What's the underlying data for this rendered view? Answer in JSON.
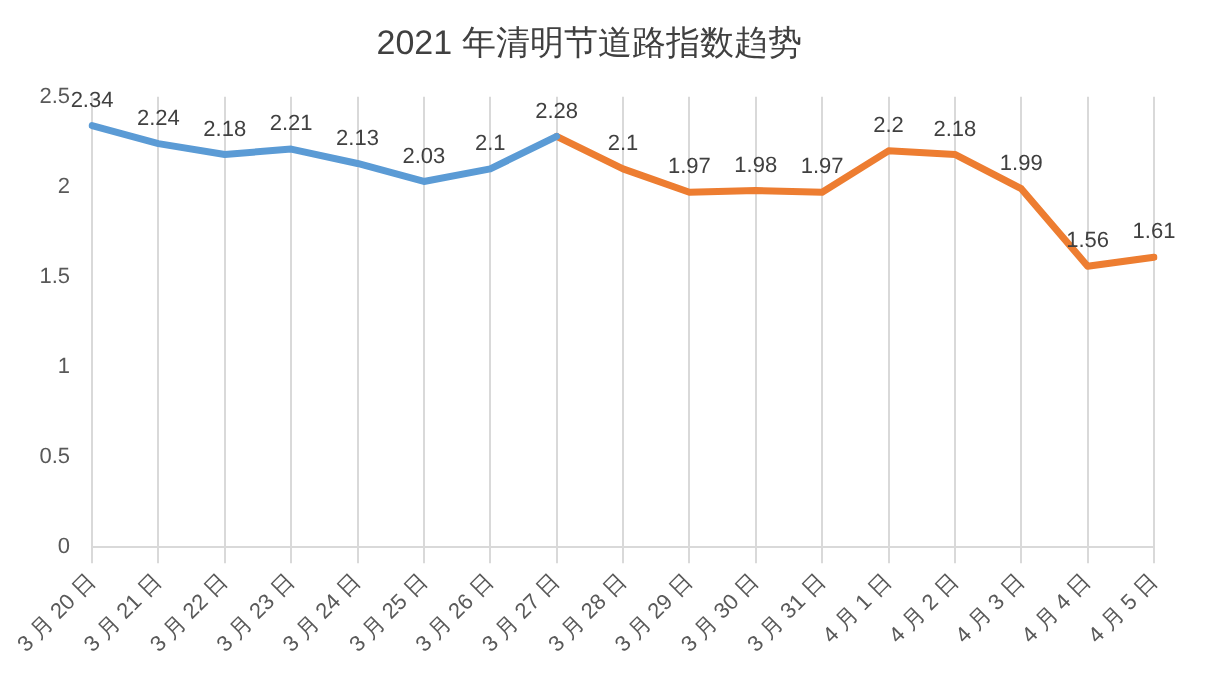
{
  "chart_data": {
    "type": "line",
    "title": "2021 年清明节道路指数趋势",
    "categories": [
      "3 月 20 日",
      "3 月 21 日",
      "3 月 22 日",
      "3 月 23 日",
      "3 月 24 日",
      "3 月 25 日",
      "3 月 26 日",
      "3 月 27 日",
      "3 月 28 日",
      "3 月 29 日",
      "3 月 30 日",
      "3 月 31 日",
      "4 月 1 日",
      "4 月 2 日",
      "4 月 3 日",
      "4 月 4 日",
      "4 月 5 日"
    ],
    "series": [
      {
        "color": "#5b9bd5",
        "values": [
          2.34,
          2.24,
          2.18,
          2.21,
          2.13,
          2.03,
          2.1,
          2.28,
          null,
          null,
          null,
          null,
          null,
          null,
          null,
          null,
          null
        ],
        "value_labels": [
          "2.34",
          "2.24",
          "2.18",
          "2.21",
          "2.13",
          "2.03",
          "2.1",
          null,
          null,
          null,
          null,
          null,
          null,
          null,
          null,
          null,
          null
        ]
      },
      {
        "color": "#ed7d31",
        "values": [
          null,
          null,
          null,
          null,
          null,
          null,
          null,
          2.28,
          2.1,
          1.97,
          1.98,
          1.97,
          2.2,
          2.18,
          1.99,
          1.56,
          1.61
        ],
        "value_labels": [
          null,
          null,
          null,
          null,
          null,
          null,
          null,
          "2.28",
          "2.1",
          "1.97",
          "1.98",
          "1.97",
          "2.2",
          "2.18",
          "1.99",
          "1.56",
          "1.61"
        ]
      }
    ],
    "ylim": [
      0,
      2.5
    ],
    "yticks": [
      0,
      0.5,
      1,
      1.5,
      2,
      2.5
    ],
    "grid": "x",
    "legend": false,
    "marker": "none",
    "line_style": "solid"
  }
}
